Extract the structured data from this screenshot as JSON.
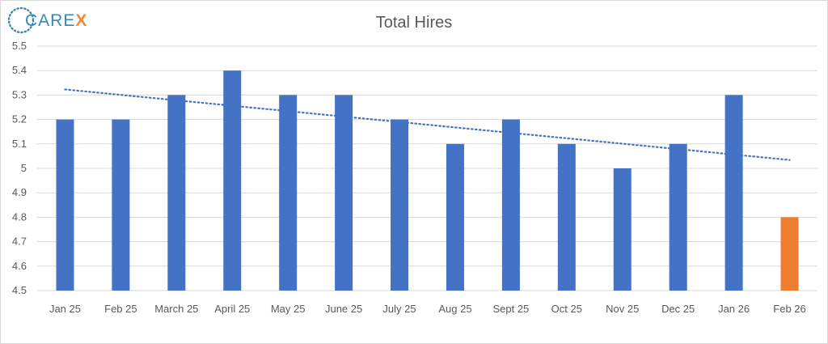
{
  "logo": {
    "name_main": "CARE",
    "name_accent": "X",
    "colors": {
      "main": "#3a86b7",
      "accent": "#ef8a3b"
    }
  },
  "chart_data": {
    "type": "bar",
    "title": "Total Hires",
    "categories": [
      "Jan 25",
      "Feb 25",
      "March 25",
      "April 25",
      "May 25",
      "June 25",
      "July 25",
      "Aug 25",
      "Sept 25",
      "Oct 25",
      "Nov 25",
      "Dec 25",
      "Jan 26",
      "Feb 26"
    ],
    "values": [
      5.2,
      5.2,
      5.3,
      5.4,
      5.3,
      5.3,
      5.2,
      5.1,
      5.2,
      5.1,
      5.0,
      5.1,
      5.3,
      4.8
    ],
    "bar_colors": [
      "#4472c4",
      "#4472c4",
      "#4472c4",
      "#4472c4",
      "#4472c4",
      "#4472c4",
      "#4472c4",
      "#4472c4",
      "#4472c4",
      "#4472c4",
      "#4472c4",
      "#4472c4",
      "#4472c4",
      "#ed7d31"
    ],
    "ylim": [
      4.5,
      5.5
    ],
    "yticks": [
      "4.5",
      "4.6",
      "4.7",
      "4.8",
      "4.9",
      "5",
      "5.1",
      "5.2",
      "5.3",
      "5.4",
      "5.5"
    ],
    "grid": true,
    "legend": "none",
    "trendline": {
      "type": "linear",
      "style": "dotted",
      "color": "#4472c4"
    },
    "xlabel": "",
    "ylabel": ""
  }
}
